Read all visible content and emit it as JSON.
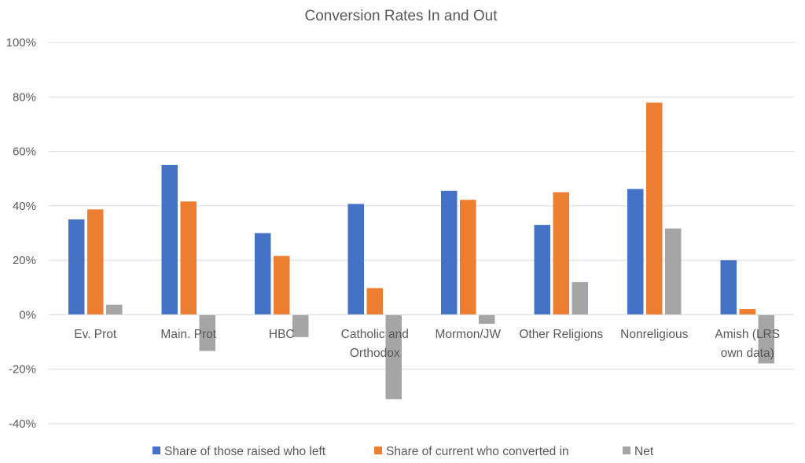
{
  "chart_data": {
    "type": "bar",
    "title": "Conversion Rates In and Out",
    "xlabel": "",
    "ylabel": "",
    "ylim": [
      -40,
      100
    ],
    "yticks": [
      -40,
      -20,
      0,
      20,
      40,
      60,
      80,
      100
    ],
    "ytick_labels": [
      "-40%",
      "-20%",
      "0%",
      "20%",
      "40%",
      "60%",
      "80%",
      "100%"
    ],
    "grid": true,
    "legend_position": "bottom",
    "categories": [
      [
        "Ev. Prot"
      ],
      [
        "Main. Prot"
      ],
      [
        "HBC"
      ],
      [
        "Catholic and",
        "Orthodox"
      ],
      [
        "Mormon/JW"
      ],
      [
        "Other Religions"
      ],
      [
        "Nonreligious"
      ],
      [
        "Amish (LRS",
        "own data)"
      ]
    ],
    "series": [
      {
        "name": "Share of those raised who left",
        "color": "#4472c4",
        "values": [
          35,
          55,
          30,
          40.7,
          45.5,
          33,
          46.2,
          20
        ]
      },
      {
        "name": "Share of current who converted in",
        "color": "#ed7d31",
        "values": [
          38.7,
          41.6,
          21.6,
          9.8,
          42.2,
          45,
          77.9,
          2.1
        ]
      },
      {
        "name": "Net",
        "color": "#a5a5a5",
        "values": [
          3.7,
          -13.3,
          -8.2,
          -31,
          -3.3,
          12,
          31.7,
          -17.9
        ]
      }
    ]
  }
}
